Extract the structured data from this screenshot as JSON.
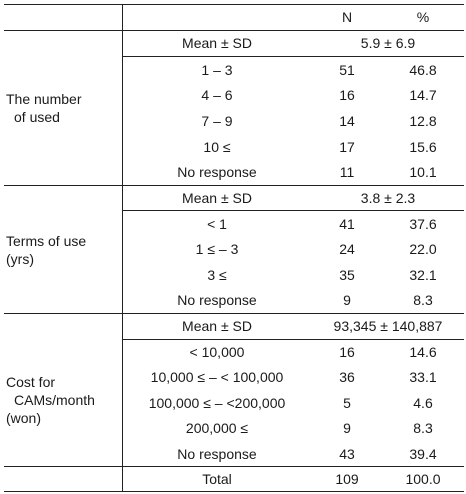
{
  "header": {
    "n": "N",
    "pct": "%"
  },
  "groups": [
    {
      "label1": "The number",
      "label2": "of used",
      "summary_label": "Mean ± SD",
      "summary_value": "5.9 ± 6.9",
      "rows": [
        {
          "cat": "1 – 3",
          "n": "51",
          "pct": "46.8"
        },
        {
          "cat": "4 – 6",
          "n": "16",
          "pct": "14.7"
        },
        {
          "cat": "7 – 9",
          "n": "14",
          "pct": "12.8"
        },
        {
          "cat": "10 ≤",
          "n": "17",
          "pct": "15.6"
        },
        {
          "cat": "No response",
          "n": "11",
          "pct": "10.1"
        }
      ]
    },
    {
      "label1": "Terms of use",
      "label2": "(yrs)",
      "summary_label": "Mean ± SD",
      "summary_value": "3.8 ± 2.3",
      "rows": [
        {
          "cat": "< 1",
          "n": "41",
          "pct": "37.6"
        },
        {
          "cat": "1 ≤ – 3",
          "n": "24",
          "pct": "22.0"
        },
        {
          "cat": "3 ≤",
          "n": "35",
          "pct": "32.1"
        },
        {
          "cat": "No response",
          "n": "9",
          "pct": "8.3"
        }
      ]
    },
    {
      "label1": "Cost for",
      "label2": "CAMs/month",
      "label3": "(won)",
      "summary_label": "Mean ± SD",
      "summary_value": "93,345 ± 140,887",
      "rows": [
        {
          "cat": "< 10,000",
          "n": "16",
          "pct": "14.6"
        },
        {
          "cat": "10,000 ≤ – < 100,000",
          "n": "36",
          "pct": "33.1"
        },
        {
          "cat": "100,000 ≤ – <200,000",
          "n": "5",
          "pct": "4.6"
        },
        {
          "cat": "200,000 ≤",
          "n": "9",
          "pct": "8.3"
        },
        {
          "cat": "No response",
          "n": "43",
          "pct": "39.4"
        }
      ]
    }
  ],
  "total": {
    "label": "Total",
    "n": "109",
    "pct": "100.0"
  }
}
